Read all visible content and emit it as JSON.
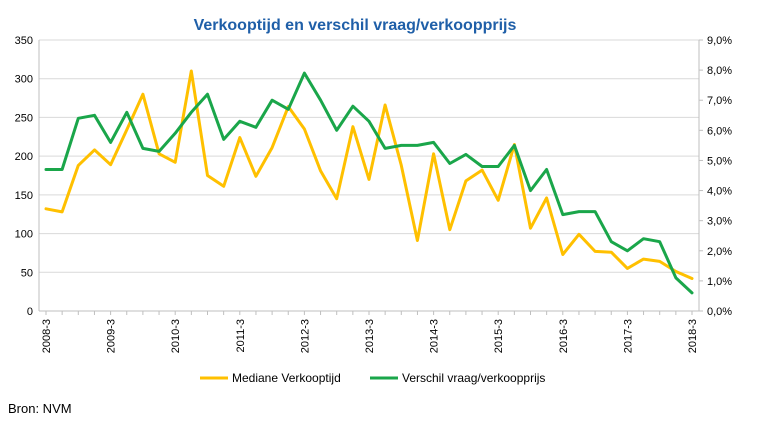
{
  "chart_data": {
    "type": "line",
    "title": "Verkooptijd en verschil vraag/verkoopprijs",
    "x": [
      "2008-3",
      "2008-4",
      "2009-1",
      "2009-2",
      "2009-3",
      "2009-4",
      "2010-1",
      "2010-2",
      "2010-3",
      "2010-4",
      "2011-1",
      "2011-2",
      "2011-3",
      "2011-4",
      "2012-1",
      "2012-2",
      "2012-3",
      "2012-4",
      "2013-1",
      "2013-2",
      "2013-3",
      "2013-4",
      "2014-1",
      "2014-2",
      "2014-3",
      "2014-4",
      "2015-1",
      "2015-2",
      "2015-3",
      "2015-4",
      "2016-1",
      "2016-2",
      "2016-3",
      "2016-4",
      "2017-1",
      "2017-2",
      "2017-3",
      "2017-4",
      "2018-1",
      "2018-2",
      "2018-3"
    ],
    "x_tick_labels": [
      "2008-3",
      "2009-3",
      "2010-3",
      "2011-3",
      "2012-3",
      "2013-3",
      "2014-3",
      "2015-3",
      "2016-3",
      "2017-3",
      "2018-3"
    ],
    "left_axis": {
      "ylim": [
        0,
        350
      ],
      "ticks": [
        "0",
        "50",
        "100",
        "150",
        "200",
        "250",
        "300",
        "350"
      ]
    },
    "right_axis": {
      "ylim": [
        0,
        9
      ],
      "ticks": [
        "0,0%",
        "1,0%",
        "2,0%",
        "3,0%",
        "4,0%",
        "5,0%",
        "6,0%",
        "7,0%",
        "8,0%",
        "9,0%"
      ]
    },
    "series": [
      {
        "name": "Mediane Verkooptijd",
        "axis": "left",
        "color": "#FFC000",
        "values": [
          132,
          128,
          188,
          208,
          189,
          234,
          280,
          203,
          192,
          310,
          175,
          161,
          224,
          174,
          211,
          264,
          235,
          181,
          145,
          238,
          170,
          266,
          188,
          91,
          203,
          105,
          168,
          182,
          143,
          215,
          107,
          146,
          73,
          99,
          77,
          76,
          55,
          67,
          64,
          51,
          42
        ]
      },
      {
        "name": "Verschil vraag/verkoopprijs",
        "axis": "right",
        "color": "#1AA64A",
        "values": [
          4.7,
          4.7,
          6.4,
          6.5,
          5.6,
          6.6,
          5.4,
          5.3,
          5.9,
          6.6,
          7.2,
          5.7,
          6.3,
          6.1,
          7.0,
          6.7,
          7.9,
          7.0,
          6.0,
          6.8,
          6.3,
          5.4,
          5.5,
          5.5,
          5.6,
          4.9,
          5.2,
          4.8,
          4.8,
          5.5,
          4.0,
          4.7,
          3.2,
          3.3,
          3.3,
          2.3,
          2.0,
          2.4,
          2.3,
          1.1,
          0.6
        ]
      }
    ],
    "legend_position": "bottom",
    "grid": true
  },
  "source": "Bron: NVM"
}
